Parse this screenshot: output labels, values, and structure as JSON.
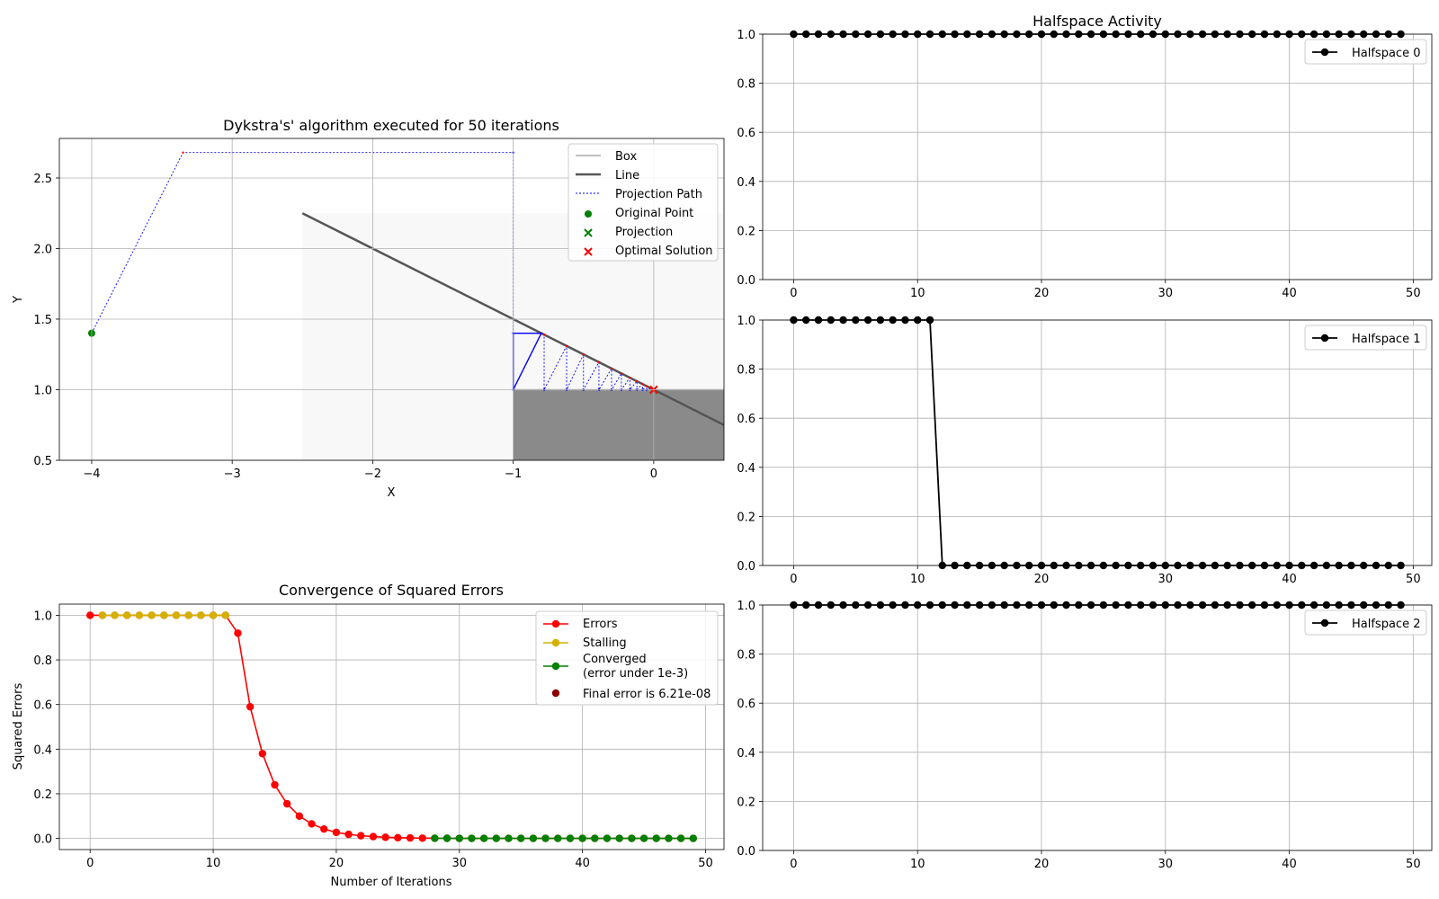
{
  "chart_data": [
    {
      "type": "scatter",
      "title": "Dykstra's' algorithm executed for 50 iterations",
      "xlabel": "X",
      "ylabel": "Y",
      "xlim": [
        -4.23,
        0.5
      ],
      "ylim": [
        0.5,
        2.78
      ],
      "xticks": [
        -4,
        -3,
        -2,
        -1,
        0
      ],
      "xtick_labels": [
        "−4",
        "−3",
        "−2",
        "−1",
        "0"
      ],
      "yticks": [
        0.5,
        1.0,
        1.5,
        2.0,
        2.5
      ],
      "ytick_labels": [
        "0.5",
        "1.0",
        "1.5",
        "2.0",
        "2.5"
      ],
      "grid": true,
      "legend_position": "top-right",
      "legend": [
        "Box",
        "Line",
        "Projection Path",
        "Original Point",
        "Projection",
        "Optimal Solution"
      ],
      "regions": {
        "light_box": {
          "x": [
            -2.5,
            0.5
          ],
          "y": [
            0.5,
            2.25
          ]
        },
        "dark_box": {
          "x": [
            -1.0,
            0.5
          ],
          "y": [
            0.5,
            1.0
          ]
        }
      },
      "line": {
        "x": [
          -2.5,
          0.5
        ],
        "y": [
          2.25,
          0.75
        ]
      },
      "original_point": [
        -4.0,
        1.4
      ],
      "projection": [
        0.0,
        1.0
      ],
      "optimal_solution": [
        0.0,
        1.0
      ],
      "projection_path": [
        [
          -4.0,
          1.4
        ],
        [
          -3.35,
          2.68
        ],
        [
          -1.0,
          2.68
        ],
        [
          -1.0,
          1.0
        ],
        [
          -1.0,
          1.4
        ],
        [
          -0.8,
          1.4
        ],
        [
          -0.78,
          1.39
        ],
        [
          -0.78,
          1.0
        ],
        [
          -0.62,
          1.31
        ],
        [
          -0.62,
          1.0
        ],
        [
          -0.5,
          1.25
        ],
        [
          -0.5,
          1.0
        ],
        [
          -0.39,
          1.195
        ],
        [
          -0.39,
          1.0
        ],
        [
          -0.3,
          1.15
        ],
        [
          -0.3,
          1.0
        ],
        [
          -0.23,
          1.115
        ],
        [
          -0.23,
          1.0
        ],
        [
          -0.17,
          1.085
        ],
        [
          -0.17,
          1.0
        ],
        [
          -0.12,
          1.06
        ],
        [
          -0.12,
          1.0
        ],
        [
          -0.08,
          1.04
        ],
        [
          -0.08,
          1.0
        ],
        [
          -0.05,
          1.025
        ],
        [
          -0.05,
          1.0
        ],
        [
          -0.02,
          1.01
        ],
        [
          0.0,
          1.0
        ]
      ],
      "path_bounds": {
        "x": [
          -1.0,
          0.0
        ],
        "y": [
          1.0,
          1.4
        ]
      }
    },
    {
      "type": "line",
      "title": "Convergence of Squared Errors",
      "xlabel": "Number of Iterations",
      "ylabel": "Squared Errors",
      "xlim": [
        -2.5,
        51.5
      ],
      "ylim": [
        -0.05,
        1.05
      ],
      "xticks": [
        0,
        10,
        20,
        30,
        40,
        50
      ],
      "xtick_labels": [
        "0",
        "10",
        "20",
        "30",
        "40",
        "50"
      ],
      "yticks": [
        0.0,
        0.2,
        0.4,
        0.6,
        0.8,
        1.0
      ],
      "ytick_labels": [
        "0.0",
        "0.2",
        "0.4",
        "0.6",
        "0.8",
        "1.0"
      ],
      "grid": true,
      "legend_position": "top-right",
      "series": [
        {
          "name": "Errors",
          "color": "#ff0000",
          "x": [
            0,
            1,
            2,
            3,
            4,
            5,
            6,
            7,
            8,
            9,
            10,
            11,
            12,
            13,
            14,
            15,
            16,
            17,
            18,
            19,
            20,
            21,
            22,
            23,
            24,
            25,
            26,
            27,
            28,
            29,
            30,
            31,
            32,
            33,
            34,
            35,
            36,
            37,
            38,
            39,
            40,
            41,
            42,
            43,
            44,
            45,
            46,
            47,
            48,
            49
          ],
          "values": [
            1.0,
            1.0,
            1.0,
            1.0,
            1.0,
            1.0,
            1.0,
            1.0,
            1.0,
            1.0,
            1.0,
            1.0,
            0.92,
            0.59,
            0.38,
            0.24,
            0.155,
            0.1,
            0.065,
            0.042,
            0.027,
            0.018,
            0.012,
            0.008,
            0.005,
            0.003,
            0.002,
            0.0012,
            0.0007,
            0.0004,
            0.0003,
            0.0002,
            0.0001,
            0.0001,
            0.0001,
            0,
            0,
            0,
            0,
            0,
            0,
            0,
            0,
            0,
            0,
            0,
            0,
            0,
            0,
            0
          ]
        },
        {
          "name": "Stalling",
          "color": "#d4b000",
          "x": [
            1,
            2,
            3,
            4,
            5,
            6,
            7,
            8,
            9,
            10,
            11
          ],
          "values": [
            1.0,
            1.0,
            1.0,
            1.0,
            1.0,
            1.0,
            1.0,
            1.0,
            1.0,
            1.0,
            1.0
          ]
        },
        {
          "name": "Converged\n(error under 1e-3)",
          "color": "#008000",
          "x": [
            28,
            29,
            30,
            31,
            32,
            33,
            34,
            35,
            36,
            37,
            38,
            39,
            40,
            41,
            42,
            43,
            44,
            45,
            46,
            47,
            48,
            49
          ],
          "values": [
            0.0007,
            0.0004,
            0.0003,
            0.0002,
            0.0001,
            0.0001,
            0.0001,
            0,
            0,
            0,
            0,
            0,
            0,
            0,
            0,
            0,
            0,
            0,
            0,
            0,
            0,
            0
          ]
        }
      ],
      "legend": [
        "Errors",
        "Stalling",
        "Converged\n(error under 1e-3)",
        "Final error is 6.21e-08"
      ]
    },
    {
      "type": "line",
      "title": "Halfspace Activity",
      "xlim": [
        -2.5,
        51.5
      ],
      "ylim": [
        0.0,
        1.0
      ],
      "xticks": [
        0,
        10,
        20,
        30,
        40,
        50
      ],
      "xtick_labels": [
        "0",
        "10",
        "20",
        "30",
        "40",
        "50"
      ],
      "yticks": [
        0.0,
        0.2,
        0.4,
        0.6,
        0.8,
        1.0
      ],
      "ytick_labels": [
        "0.0",
        "0.2",
        "0.4",
        "0.6",
        "0.8",
        "1.0"
      ],
      "grid": true,
      "legend_position": "top-right",
      "series": [
        {
          "name": "Halfspace 0",
          "values": [
            1,
            1,
            1,
            1,
            1,
            1,
            1,
            1,
            1,
            1,
            1,
            1,
            1,
            1,
            1,
            1,
            1,
            1,
            1,
            1,
            1,
            1,
            1,
            1,
            1,
            1,
            1,
            1,
            1,
            1,
            1,
            1,
            1,
            1,
            1,
            1,
            1,
            1,
            1,
            1,
            1,
            1,
            1,
            1,
            1,
            1,
            1,
            1,
            1,
            1
          ]
        },
        {
          "name": "Halfspace 1",
          "values": [
            1,
            1,
            1,
            1,
            1,
            1,
            1,
            1,
            1,
            1,
            1,
            1,
            0,
            0,
            0,
            0,
            0,
            0,
            0,
            0,
            0,
            0,
            0,
            0,
            0,
            0,
            0,
            0,
            0,
            0,
            0,
            0,
            0,
            0,
            0,
            0,
            0,
            0,
            0,
            0,
            0,
            0,
            0,
            0,
            0,
            0,
            0,
            0,
            0,
            0
          ]
        },
        {
          "name": "Halfspace 2",
          "values": [
            1,
            1,
            1,
            1,
            1,
            1,
            1,
            1,
            1,
            1,
            1,
            1,
            1,
            1,
            1,
            1,
            1,
            1,
            1,
            1,
            1,
            1,
            1,
            1,
            1,
            1,
            1,
            1,
            1,
            1,
            1,
            1,
            1,
            1,
            1,
            1,
            1,
            1,
            1,
            1,
            1,
            1,
            1,
            1,
            1,
            1,
            1,
            1,
            1,
            1
          ]
        }
      ]
    }
  ]
}
